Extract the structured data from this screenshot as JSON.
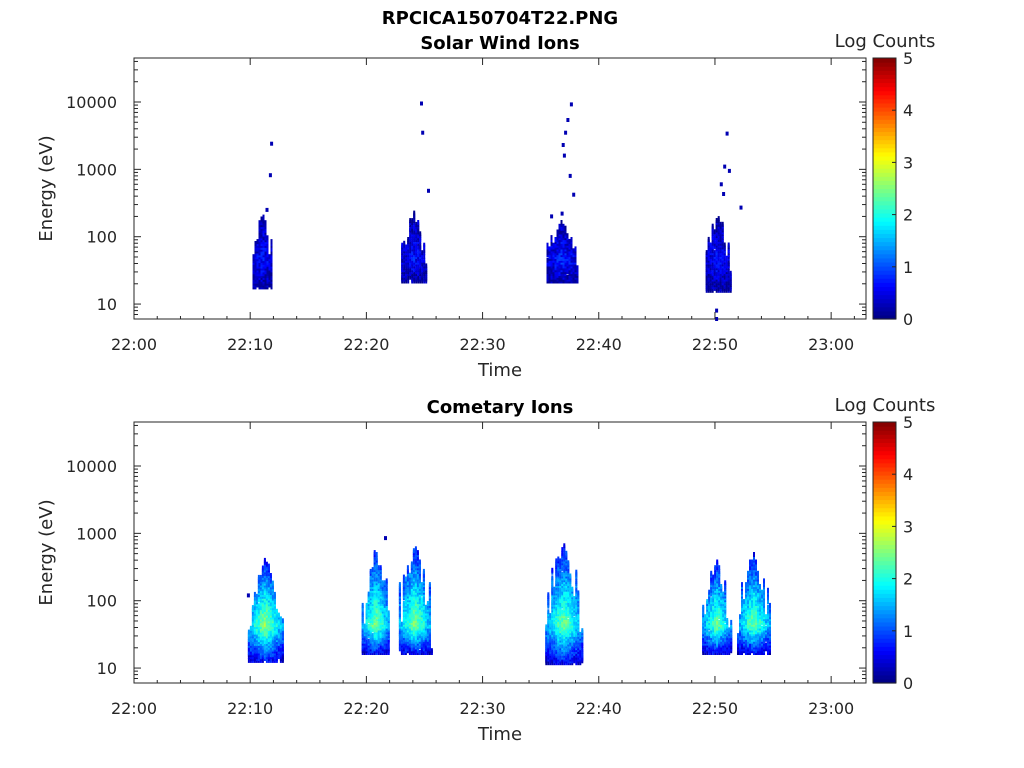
{
  "figure_title": "RPCICA150704T22.PNG",
  "colorbar_colors": [
    "#00007f",
    "#0000ff",
    "#007fff",
    "#00ffff",
    "#7fff7f",
    "#ffff00",
    "#ff7f00",
    "#ff0000",
    "#7f0000"
  ],
  "chart_data": [
    {
      "type": "heatmap",
      "title": "Solar Wind Ions",
      "xlabel": "Time",
      "ylabel": "Energy (eV)",
      "x_ticks": [
        "22:00",
        "22:10",
        "22:20",
        "22:30",
        "22:40",
        "22:50",
        "23:00"
      ],
      "xlim_minutes": [
        0,
        63
      ],
      "y_ticks": [
        10,
        100,
        1000,
        10000
      ],
      "y_scale": "log",
      "ylim": [
        6,
        45000
      ],
      "colorbar": {
        "label": "Log Counts",
        "range": [
          0,
          5
        ],
        "ticks": [
          0,
          1,
          2,
          3,
          4,
          5
        ]
      },
      "bursts": [
        {
          "t": [
            10.2,
            11.9
          ],
          "emin": 18,
          "emax": 230,
          "peak": 0.7,
          "outliers": [
            [
              11.8,
              2400
            ],
            [
              11.7,
              820
            ],
            [
              11.4,
              250
            ]
          ]
        },
        {
          "t": [
            23.0,
            25.2
          ],
          "emin": 22,
          "emax": 230,
          "peak": 0.7,
          "outliers": [
            [
              24.7,
              9500
            ],
            [
              24.8,
              3500
            ],
            [
              25.3,
              480
            ]
          ]
        },
        {
          "t": [
            35.5,
            38.2
          ],
          "emin": 22,
          "emax": 170,
          "peak": 0.8,
          "outliers": [
            [
              37.6,
              9200
            ],
            [
              37.3,
              5400
            ],
            [
              37.1,
              3500
            ],
            [
              36.9,
              2300
            ],
            [
              37.0,
              1600
            ],
            [
              37.5,
              800
            ],
            [
              37.8,
              420
            ],
            [
              36.8,
              220
            ],
            [
              35.9,
              200
            ]
          ]
        },
        {
          "t": [
            49.2,
            51.3
          ],
          "emin": 16,
          "emax": 220,
          "peak": 0.7,
          "outliers": [
            [
              51.0,
              3400
            ],
            [
              50.8,
              1100
            ],
            [
              51.2,
              950
            ],
            [
              50.5,
              600
            ],
            [
              50.7,
              430
            ],
            [
              52.2,
              270
            ],
            [
              50.1,
              8
            ],
            [
              50.1,
              6
            ]
          ]
        }
      ]
    },
    {
      "type": "heatmap",
      "title": "Cometary Ions",
      "xlabel": "Time",
      "ylabel": "Energy (eV)",
      "x_ticks": [
        "22:00",
        "22:10",
        "22:20",
        "22:30",
        "22:40",
        "22:50",
        "23:00"
      ],
      "xlim_minutes": [
        0,
        63
      ],
      "y_ticks": [
        10,
        100,
        1000,
        10000
      ],
      "y_scale": "log",
      "ylim": [
        6,
        45000
      ],
      "colorbar": {
        "label": "Log Counts",
        "range": [
          0,
          5
        ],
        "ticks": [
          0,
          1,
          2,
          3,
          4,
          5
        ]
      },
      "bursts": [
        {
          "t": [
            9.8,
            12.8
          ],
          "emin": 13,
          "emax": 420,
          "peak": 2.7,
          "outliers": [
            [
              9.8,
              120
            ]
          ]
        },
        {
          "t": [
            19.6,
            22.0
          ],
          "emin": 17,
          "emax": 600,
          "peak": 2.6,
          "outliers": [
            [
              21.6,
              850
            ]
          ]
        },
        {
          "t": [
            22.8,
            25.6
          ],
          "emin": 17,
          "emax": 700,
          "peak": 2.6,
          "outliers": []
        },
        {
          "t": [
            35.4,
            38.6
          ],
          "emin": 12,
          "emax": 720,
          "peak": 2.5,
          "outliers": []
        },
        {
          "t": [
            48.9,
            51.4
          ],
          "emin": 17,
          "emax": 430,
          "peak": 2.5,
          "outliers": []
        },
        {
          "t": [
            51.9,
            54.8
          ],
          "emin": 17,
          "emax": 520,
          "peak": 2.5,
          "outliers": []
        }
      ]
    }
  ]
}
